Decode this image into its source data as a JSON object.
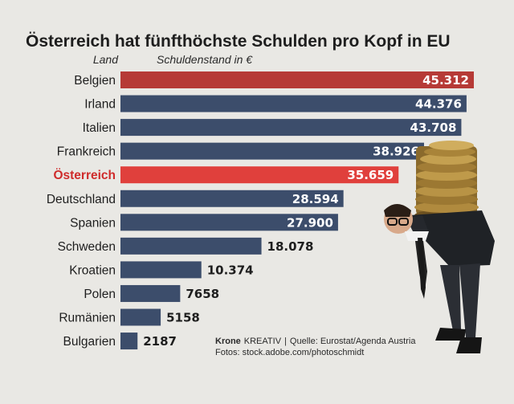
{
  "chart_data": {
    "type": "bar",
    "orientation": "horizontal",
    "title": "Österreich hat fünfthöchste Schulden pro Kopf in EU",
    "category_header": "Land",
    "value_header": "Schuldenstand in €",
    "categories": [
      "Belgien",
      "Irland",
      "Italien",
      "Frankreich",
      "Österreich",
      "Deutschland",
      "Spanien",
      "Schweden",
      "Kroatien",
      "Polen",
      "Rumänien",
      "Bulgarien"
    ],
    "values": [
      45312,
      44376,
      43708,
      38926,
      35659,
      28594,
      27900,
      18078,
      10374,
      7658,
      5158,
      2187
    ],
    "value_labels": [
      "45.312",
      "44.376",
      "43.708",
      "38.926",
      "35.659",
      "28.594",
      "27.900",
      "18.078",
      "10.374",
      "7658",
      "5158",
      "2187"
    ],
    "highlight_category": "Österreich",
    "colors": {
      "bar_default": "#3c4d6b",
      "bar_belgien": "#b63a36",
      "bar_highlight": "#e0403c",
      "label_highlight": "#cf2b2b"
    },
    "xlim": [
      0,
      45312
    ],
    "grid": false,
    "legend": "none"
  },
  "credits": {
    "brand_bold": "Krone",
    "brand_rest": "KREATIV",
    "separator": "|",
    "source": "Quelle: Eurostat/Agenda Austria",
    "photo": "Fotos: stock.adobe.com/photoschmidt"
  },
  "illustration": {
    "icon": "businessman-carrying-coin-stack-icon"
  }
}
